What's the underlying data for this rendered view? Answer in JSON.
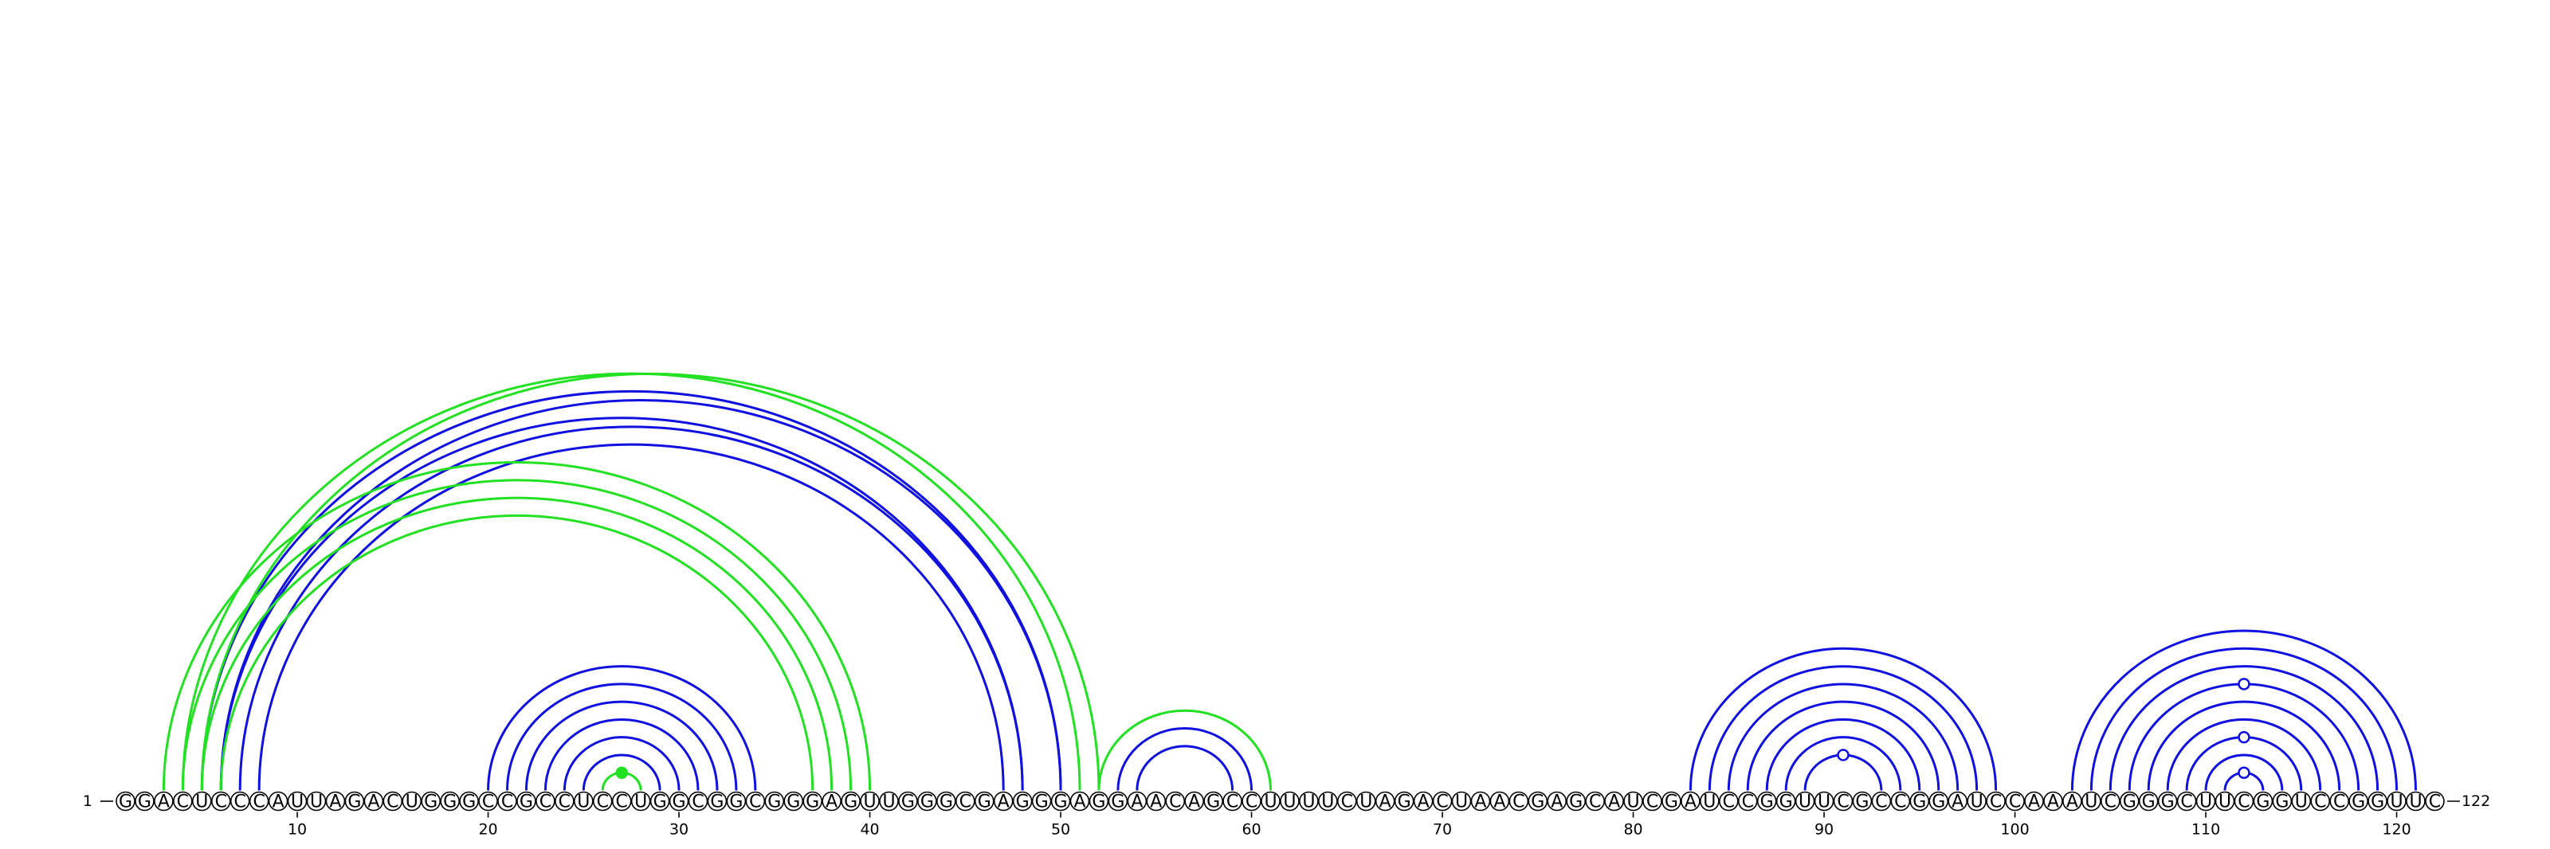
{
  "chart_data": {
    "type": "arc-diagram",
    "sequence": "GGACUCCCAUUAGACUGGGCCGCCUCCUGGCGGCGGGAGUUGGGCGAGGGAGGAACAGCCUUUUCUAGACUAACGAGCAUCGAUCCGGUUCGCCGGAUCCAAAUCGGGCUUCGGUCCGGUUC",
    "length": 122,
    "start_label": "1",
    "end_label": "122",
    "ticks": [
      {
        "position": 10,
        "label": "10"
      },
      {
        "position": 20,
        "label": "20"
      },
      {
        "position": 30,
        "label": "30"
      },
      {
        "position": 40,
        "label": "40"
      },
      {
        "position": 50,
        "label": "50"
      },
      {
        "position": 60,
        "label": "60"
      },
      {
        "position": 70,
        "label": "70"
      },
      {
        "position": 80,
        "label": "80"
      },
      {
        "position": 90,
        "label": "90"
      },
      {
        "position": 100,
        "label": "100"
      },
      {
        "position": 110,
        "label": "110"
      },
      {
        "position": 120,
        "label": "120"
      }
    ],
    "colors": {
      "blue": "#1010e0",
      "green": "#22e022",
      "base_stroke": "#000000"
    },
    "arcs": [
      {
        "i": 20,
        "j": 34,
        "color": "blue"
      },
      {
        "i": 21,
        "j": 33,
        "color": "blue"
      },
      {
        "i": 22,
        "j": 32,
        "color": "blue"
      },
      {
        "i": 23,
        "j": 31,
        "color": "blue"
      },
      {
        "i": 24,
        "j": 30,
        "color": "blue"
      },
      {
        "i": 25,
        "j": 29,
        "color": "blue"
      },
      {
        "i": 26,
        "j": 28,
        "color": "green"
      },
      {
        "i": 6,
        "j": 48,
        "color": "blue"
      },
      {
        "i": 7,
        "j": 48,
        "color": "blue"
      },
      {
        "i": 8,
        "j": 47,
        "color": "blue"
      },
      {
        "i": 6,
        "j": 50,
        "color": "blue"
      },
      {
        "i": 5,
        "j": 50,
        "color": "blue"
      },
      {
        "i": 4,
        "j": 51,
        "color": "green"
      },
      {
        "i": 5,
        "j": 52,
        "color": "green"
      },
      {
        "i": 6,
        "j": 37,
        "color": "green"
      },
      {
        "i": 5,
        "j": 38,
        "color": "green"
      },
      {
        "i": 4,
        "j": 39,
        "color": "green"
      },
      {
        "i": 3,
        "j": 40,
        "color": "green"
      },
      {
        "i": 53,
        "j": 60,
        "color": "blue"
      },
      {
        "i": 54,
        "j": 59,
        "color": "blue"
      },
      {
        "i": 52,
        "j": 61,
        "color": "green"
      },
      {
        "i": 83,
        "j": 99,
        "color": "blue"
      },
      {
        "i": 84,
        "j": 98,
        "color": "blue"
      },
      {
        "i": 85,
        "j": 97,
        "color": "blue"
      },
      {
        "i": 86,
        "j": 96,
        "color": "blue"
      },
      {
        "i": 87,
        "j": 95,
        "color": "blue"
      },
      {
        "i": 88,
        "j": 94,
        "color": "blue"
      },
      {
        "i": 89,
        "j": 93,
        "color": "blue"
      },
      {
        "i": 103,
        "j": 121,
        "color": "blue"
      },
      {
        "i": 104,
        "j": 120,
        "color": "blue"
      },
      {
        "i": 105,
        "j": 119,
        "color": "blue"
      },
      {
        "i": 106,
        "j": 118,
        "color": "blue"
      },
      {
        "i": 107,
        "j": 117,
        "color": "blue"
      },
      {
        "i": 108,
        "j": 116,
        "color": "blue"
      },
      {
        "i": 109,
        "j": 115,
        "color": "blue"
      },
      {
        "i": 110,
        "j": 114,
        "color": "blue"
      },
      {
        "i": 111,
        "j": 113,
        "color": "blue"
      }
    ],
    "markers": [
      {
        "position": 27,
        "color": "green",
        "filled": true,
        "arc_index": 6
      },
      {
        "position": 91,
        "color": "blue",
        "filled": false,
        "arc_index": 27
      },
      {
        "position": 112,
        "color": "blue",
        "filled": false,
        "arc_index": 36
      },
      {
        "position": 112,
        "color": "blue",
        "filled": false,
        "arc_index": 34
      },
      {
        "position": 112,
        "color": "blue",
        "filled": false,
        "arc_index": 31
      }
    ]
  }
}
